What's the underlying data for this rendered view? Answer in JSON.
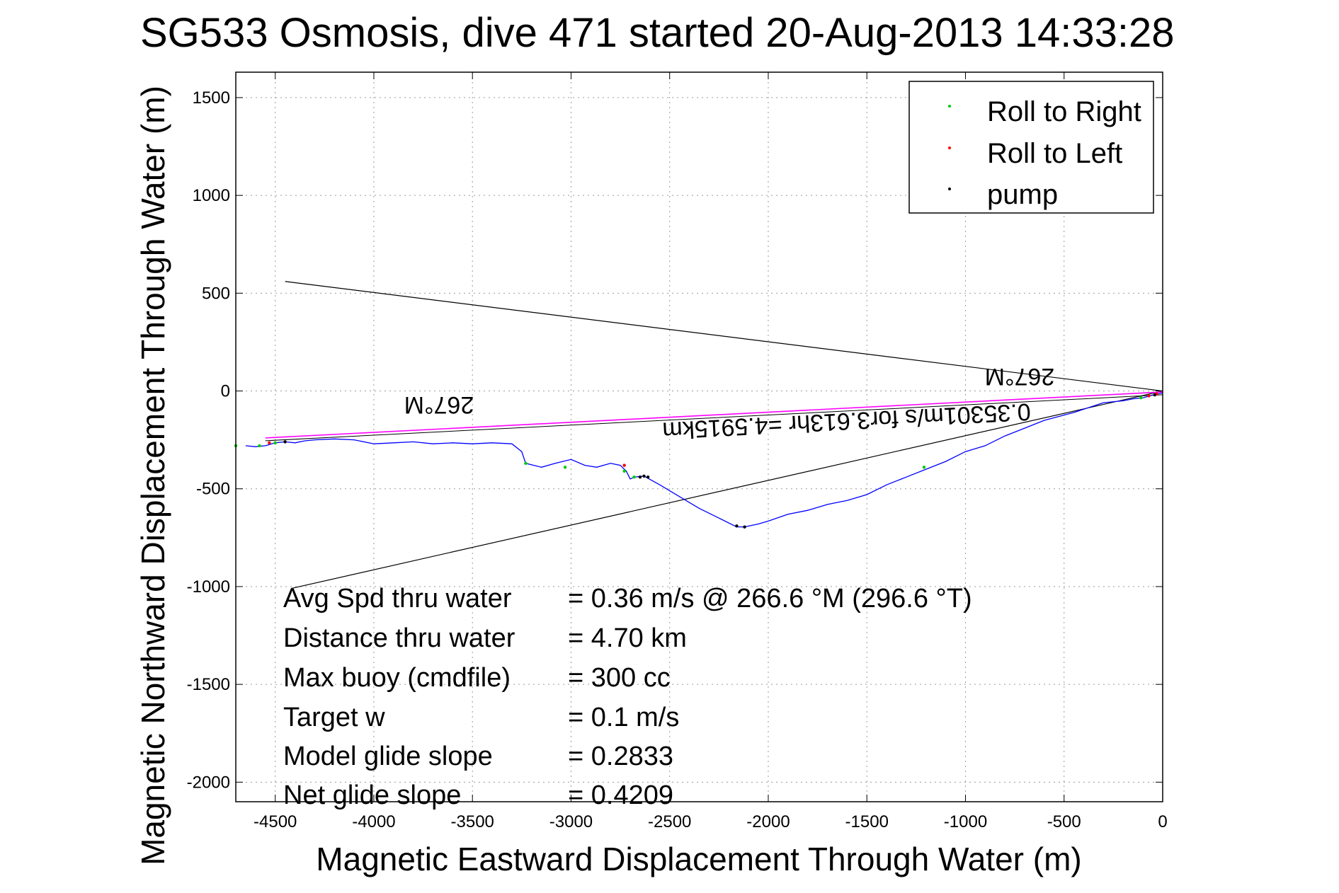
{
  "chart_data": {
    "type": "line",
    "title": "SG533 Osmosis, dive 471 started 20-Aug-2013 14:33:28",
    "xlabel": "Magnetic Eastward Displacement Through Water (m)",
    "ylabel": "Magnetic Northward Displacement Through Water (m)",
    "xlim": [
      -4700,
      0
    ],
    "ylim": [
      -2100,
      1630
    ],
    "xticks": [
      -4500,
      -4000,
      -3500,
      -3000,
      -2500,
      -2000,
      -1500,
      -1000,
      -500,
      0
    ],
    "yticks": [
      1500,
      1000,
      500,
      0,
      -500,
      -1000,
      -1500,
      -2000
    ],
    "grid": true,
    "legend_position": "top-right",
    "legend": [
      {
        "label": "Roll to Right",
        "color": "#00cc00"
      },
      {
        "label": "Roll to Left",
        "color": "#ff0000"
      },
      {
        "label": "pump",
        "color": "#000000"
      }
    ],
    "track": {
      "color": "#0000ff",
      "x": [
        0,
        -50,
        -100,
        -150,
        -200,
        -300,
        -450,
        -600,
        -700,
        -800,
        -900,
        -1000,
        -1100,
        -1200,
        -1300,
        -1400,
        -1500,
        -1600,
        -1700,
        -1800,
        -1900,
        -2000,
        -2050,
        -2120,
        -2160,
        -2250,
        -2350,
        -2450,
        -2550,
        -2630,
        -2680,
        -2700,
        -2720,
        -2750,
        -2800,
        -2870,
        -2930,
        -3000,
        -3080,
        -3150,
        -3230,
        -3250,
        -3300,
        -3400,
        -3500,
        -3600,
        -3700,
        -3800,
        -3900,
        -4000,
        -4100,
        -4200,
        -4300,
        -4350,
        -4400,
        -4450,
        -4500,
        -4550,
        -4600,
        -4650
      ],
      "y": [
        -10,
        -20,
        -35,
        -40,
        -50,
        -60,
        -110,
        -150,
        -190,
        -230,
        -280,
        -310,
        -360,
        -400,
        -440,
        -480,
        -530,
        -560,
        -580,
        -610,
        -630,
        -665,
        -680,
        -695,
        -695,
        -650,
        -600,
        -540,
        -480,
        -435,
        -440,
        -450,
        -410,
        -380,
        -370,
        -390,
        -380,
        -350,
        -370,
        -390,
        -370,
        -310,
        -270,
        -265,
        -270,
        -265,
        -270,
        -260,
        -265,
        -270,
        -250,
        -245,
        -250,
        -255,
        -265,
        -260,
        -265,
        -280,
        -285,
        -280
      ]
    },
    "roll_right_points": {
      "x": [
        -4700,
        -4580,
        -4500,
        -3230,
        -3030,
        -2730,
        -2680,
        -1210,
        -110
      ],
      "y": [
        -280,
        -280,
        -265,
        -370,
        -390,
        -410,
        -440,
        -390,
        -35
      ]
    },
    "roll_left_points": {
      "x": [
        -4530,
        -2730,
        -70,
        -30
      ],
      "y": [
        -265,
        -380,
        -25,
        -15
      ]
    },
    "pump_points": {
      "x": [
        -4450,
        -2650,
        -2630,
        -2610,
        -2160,
        -2120,
        -40
      ],
      "y": [
        -260,
        -440,
        -435,
        -440,
        -690,
        -695,
        -20
      ]
    },
    "current_arrow": {
      "color": "#ff00ff",
      "x": [
        0,
        -4550
      ],
      "y": [
        -5,
        -240
      ],
      "label": "0.35301m/s for3.613hr =4.5915km"
    },
    "heading_lines": {
      "color": "#000000",
      "lines": [
        {
          "x": [
            0,
            -4450
          ],
          "y": [
            0,
            560
          ]
        },
        {
          "x": [
            0,
            -4420
          ],
          "y": [
            0,
            -1010
          ]
        }
      ]
    },
    "heading_labels": [
      "267°M",
      "267°M"
    ]
  },
  "stats": [
    {
      "label": "Avg Spd thru water",
      "value": "=  0.36 m/s @ 266.6 °M (296.6 °T)"
    },
    {
      "label": "Distance thru water",
      "value": "=  4.70 km"
    },
    {
      "label": "Max buoy (cmdfile)",
      "value": "= 300 cc"
    },
    {
      "label": "Target w",
      "value": "= 0.1 m/s"
    },
    {
      "label": "Model glide slope",
      "value": "= 0.2833"
    },
    {
      "label": "Net glide slope",
      "value": "= 0.4209"
    }
  ]
}
